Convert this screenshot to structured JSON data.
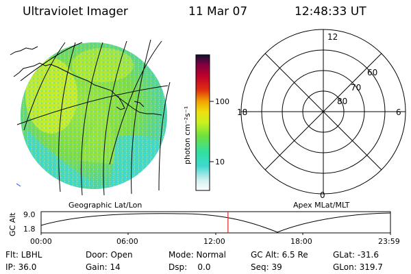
{
  "header": {
    "instrument": "Ultraviolet Imager",
    "date": "11 Mar 07",
    "time": "12:48:33 UT"
  },
  "colorbar": {
    "unit_label": "photon cm⁻²s⁻¹",
    "ticks": [
      "100",
      "10"
    ]
  },
  "geo_map": {
    "label": "Geographic Lat/Lon"
  },
  "polar_plot": {
    "label": "Apex MLat/MLT",
    "mlt_labels": {
      "top": "12",
      "left": "18",
      "right": "6",
      "bottom": "0"
    },
    "lat_labels": [
      "60",
      "70",
      "80"
    ]
  },
  "altitude_timeline": {
    "ylabel": "GC Alt",
    "ymax_label": "9.0",
    "ymin_label": "1.8",
    "x_ticks": [
      "00:00",
      "06:00",
      "12:00",
      "18:00",
      "23:59"
    ],
    "current_time_fraction": 0.535,
    "marker_color": "#e02020"
  },
  "status": {
    "row1": {
      "filter": "Flt: LBHL",
      "door": "Door: Open",
      "mode": "Mode: Normal",
      "gc_alt": "GC Alt: 6.5 Re",
      "glat": "GLat: -31.6"
    },
    "row2": {
      "ip": "IP: 36.0",
      "gain": "Gain: 14",
      "dsp": "Dsp:    0.0",
      "seq": "Seq: 39",
      "glon": "GLon: 319.7"
    }
  },
  "colors": {
    "aurora_green": "#7fe03a",
    "aurora_cyan": "#40d8d0",
    "aurora_yellow": "#d8f020"
  }
}
